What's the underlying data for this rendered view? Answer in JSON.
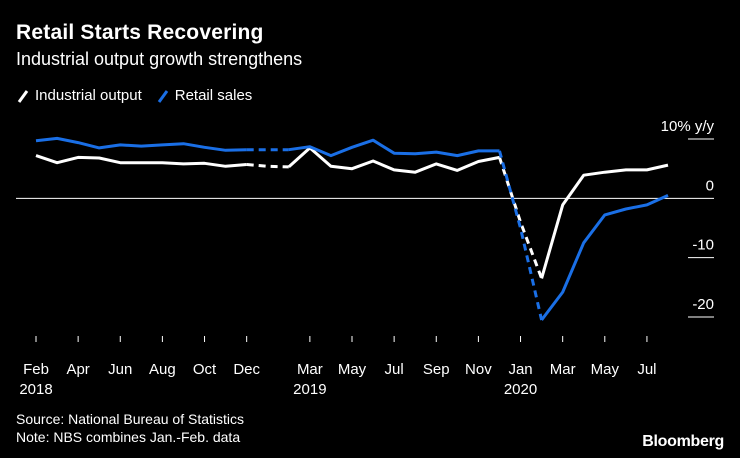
{
  "title": "Retail Starts Recovering",
  "subtitle": "Industrial output growth strengthens",
  "legend": {
    "industrial": "Industrial output",
    "retail": "Retail sales"
  },
  "footer": {
    "source": "Source: National Bureau of Statistics",
    "note": "Note: NBS combines Jan.-Feb. data"
  },
  "brand": "Bloomberg",
  "colors": {
    "background": "#000000",
    "industrial": "#ffffff",
    "retail": "#1a6fe6",
    "grid": "#ffffff"
  },
  "chart_data": {
    "type": "line",
    "title": "Retail Starts Recovering",
    "subtitle": "Industrial output growth strengthens",
    "unit_label": "% y/y",
    "ylim": [
      -20,
      10
    ],
    "yticks": [
      10,
      0,
      -10,
      -20
    ],
    "ytick_labels": [
      "10% y/y",
      "0",
      "-10",
      "-20"
    ],
    "xlim": [
      0,
      30
    ],
    "xticks": [
      {
        "x": 0,
        "label": "Feb",
        "year": "2018"
      },
      {
        "x": 2,
        "label": "Apr",
        "year": ""
      },
      {
        "x": 4,
        "label": "Jun",
        "year": ""
      },
      {
        "x": 6,
        "label": "Aug",
        "year": ""
      },
      {
        "x": 8,
        "label": "Oct",
        "year": ""
      },
      {
        "x": 10,
        "label": "Dec",
        "year": ""
      },
      {
        "x": 13,
        "label": "Mar",
        "year": "2019"
      },
      {
        "x": 15,
        "label": "May",
        "year": ""
      },
      {
        "x": 17,
        "label": "Jul",
        "year": ""
      },
      {
        "x": 19,
        "label": "Sep",
        "year": ""
      },
      {
        "x": 21,
        "label": "Nov",
        "year": ""
      },
      {
        "x": 23,
        "label": "Jan",
        "year": "2020"
      },
      {
        "x": 25,
        "label": "Mar",
        "year": ""
      },
      {
        "x": 27,
        "label": "May",
        "year": ""
      },
      {
        "x": 29,
        "label": "Jul",
        "year": ""
      }
    ],
    "series": [
      {
        "name": "Industrial output",
        "color": "#ffffff",
        "segments": [
          {
            "style": "solid",
            "x": [
              0,
              1,
              2,
              3,
              4,
              5,
              6,
              7,
              8,
              9,
              10
            ],
            "y": [
              7.2,
              6.0,
              6.9,
              6.8,
              6.0,
              6.0,
              6.0,
              5.8,
              5.9,
              5.4,
              5.7
            ]
          },
          {
            "style": "dashed",
            "x": [
              10,
              11,
              12
            ],
            "y": [
              5.7,
              5.4,
              5.3
            ]
          },
          {
            "style": "solid",
            "x": [
              12,
              13,
              14,
              15,
              16,
              17,
              18,
              19,
              20,
              21,
              22
            ],
            "y": [
              5.3,
              8.5,
              5.4,
              5.0,
              6.3,
              4.8,
              4.4,
              5.8,
              4.7,
              6.2,
              6.9
            ]
          },
          {
            "style": "dashed",
            "x": [
              22,
              23,
              24
            ],
            "y": [
              6.9,
              -4.0,
              -13.5
            ]
          },
          {
            "style": "solid",
            "x": [
              24,
              25,
              26,
              27,
              28,
              29,
              30
            ],
            "y": [
              -13.5,
              -1.1,
              3.9,
              4.4,
              4.8,
              4.8,
              5.6
            ]
          }
        ]
      },
      {
        "name": "Retail sales",
        "color": "#1a6fe6",
        "segments": [
          {
            "style": "solid",
            "x": [
              0,
              1,
              2,
              3,
              4,
              5,
              6,
              7,
              8,
              9,
              10
            ],
            "y": [
              9.7,
              10.1,
              9.4,
              8.5,
              9.0,
              8.8,
              9.0,
              9.2,
              8.6,
              8.1,
              8.2
            ]
          },
          {
            "style": "dashed",
            "x": [
              10,
              11,
              12
            ],
            "y": [
              8.2,
              8.2,
              8.2
            ]
          },
          {
            "style": "solid",
            "x": [
              12,
              13,
              14,
              15,
              16,
              17,
              18,
              19,
              20,
              21,
              22
            ],
            "y": [
              8.2,
              8.7,
              7.2,
              8.6,
              9.8,
              7.6,
              7.5,
              7.8,
              7.2,
              8.0,
              8.0
            ]
          },
          {
            "style": "dashed",
            "x": [
              22,
              23,
              24
            ],
            "y": [
              8.0,
              -5.0,
              -20.5
            ]
          },
          {
            "style": "solid",
            "x": [
              24,
              25,
              26,
              27,
              28,
              29,
              30
            ],
            "y": [
              -20.5,
              -15.8,
              -7.5,
              -2.8,
              -1.8,
              -1.1,
              0.5
            ]
          }
        ]
      }
    ]
  }
}
